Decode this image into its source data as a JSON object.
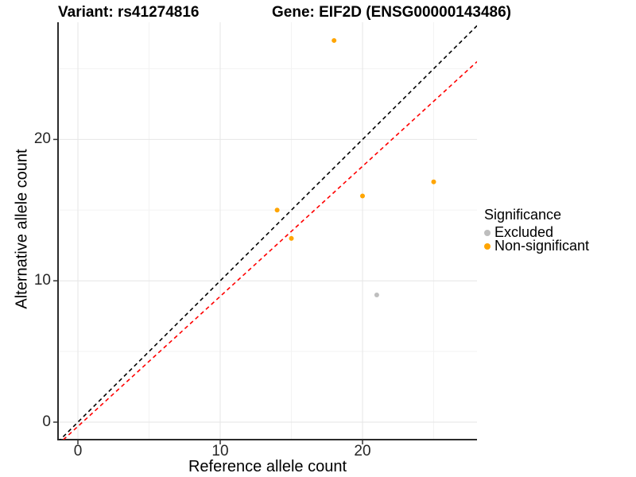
{
  "chart_data": {
    "type": "scatter",
    "title_left": "Variant: rs41274816",
    "title_right": "Gene: EIF2D (ENSG00000143486)",
    "xlabel": "Reference allele count",
    "ylabel": "Alternative allele count",
    "xlim": [
      -1.4,
      28.05
    ],
    "ylim": [
      -1.25,
      28.3
    ],
    "x_ticks": [
      0,
      10,
      20
    ],
    "y_ticks": [
      0,
      10,
      20
    ],
    "x_minor_ticks": [
      5,
      15,
      25
    ],
    "y_minor_ticks": [
      5,
      15,
      25
    ],
    "grid": true,
    "legend_position": "right",
    "legend_title": "Significance",
    "series": [
      {
        "name": "Excluded",
        "color": "#BEBEBE",
        "points": [
          [
            21,
            9
          ]
        ]
      },
      {
        "name": "Non-significant",
        "color": "#FFA500",
        "points": [
          [
            14,
            15
          ],
          [
            15,
            13
          ],
          [
            18,
            27
          ],
          [
            20,
            16
          ],
          [
            25,
            17
          ]
        ]
      }
    ],
    "reference_lines": [
      {
        "name": "identity-line",
        "color": "#000000",
        "dash": true,
        "slope": 1,
        "intercept": 0
      },
      {
        "name": "expected-ratio-line",
        "color": "#FF0000",
        "dash": true,
        "slope": 0.92,
        "intercept": -0.3
      }
    ],
    "style": {
      "axis_color": "#2b2b2b",
      "tick_color": "#333333",
      "grid_major_color": "#e6e6e6",
      "grid_minor_color": "#f3f3f3",
      "background": "#ffffff"
    }
  }
}
